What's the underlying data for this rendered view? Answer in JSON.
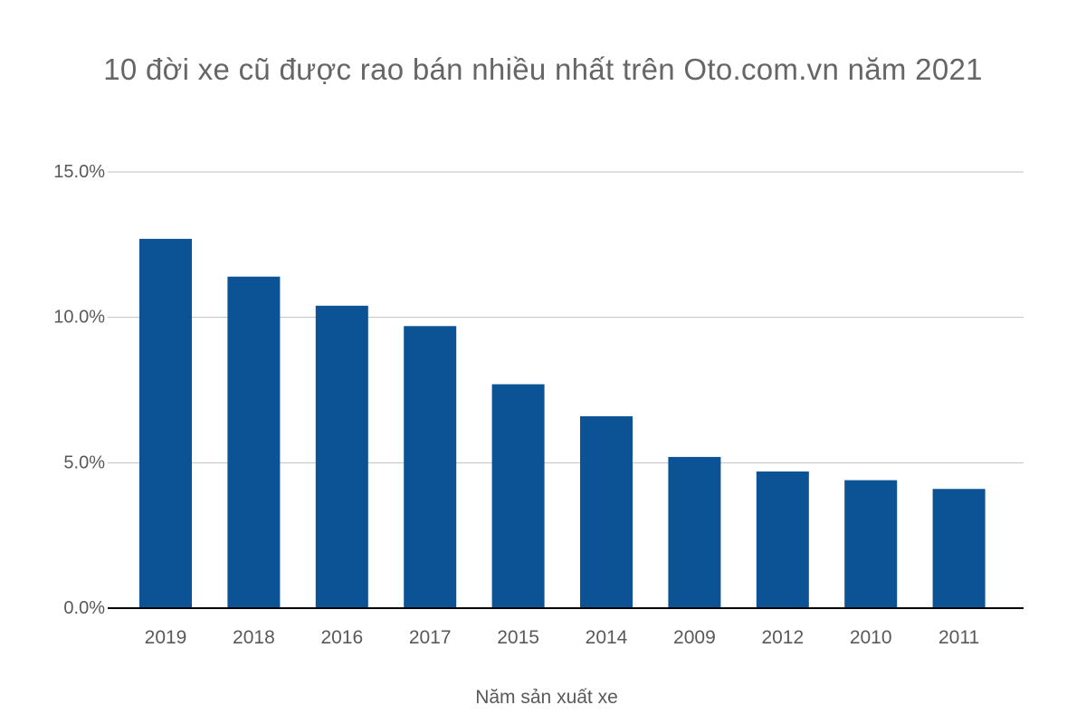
{
  "chart_data": {
    "type": "bar",
    "title": "10 đời xe cũ được rao bán nhiều nhất trên Oto.com.vn năm 2021",
    "xlabel": "Năm sản xuất xe",
    "ylabel": "",
    "categories": [
      "2019",
      "2018",
      "2016",
      "2017",
      "2015",
      "2014",
      "2009",
      "2012",
      "2010",
      "2011"
    ],
    "values": [
      12.7,
      11.4,
      10.4,
      9.7,
      7.7,
      6.6,
      5.2,
      4.7,
      4.4,
      4.1
    ],
    "value_unit": "%",
    "ylim": [
      0,
      15
    ],
    "yticks": [
      "0.0%",
      "5.0%",
      "10.0%",
      "15.0%"
    ],
    "ytick_values": [
      0,
      5,
      10,
      15
    ],
    "grid": true,
    "bar_color": "#0b5394",
    "legend": "none"
  }
}
